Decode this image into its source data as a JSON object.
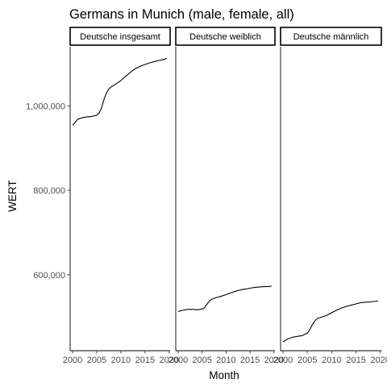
{
  "chart_data": {
    "type": "line",
    "title": "Germans in Munich (male, female, all)",
    "xlabel": "Month",
    "ylabel": "WERT",
    "xlim": [
      1999.5,
      2020.2
    ],
    "ylim": [
      420000,
      1140000
    ],
    "x_ticks": [
      2000,
      2005,
      2010,
      2015,
      2020
    ],
    "x_tick_labels": [
      "2000",
      "2005",
      "2010",
      "2015",
      "2020"
    ],
    "y_ticks": [
      600000,
      800000,
      1000000
    ],
    "y_tick_labels": [
      "600,000",
      "800,000",
      "1,000,000"
    ],
    "grid": false,
    "line_color": "#000000",
    "facets": [
      {
        "label": "Deutsche insgesamt",
        "x": [
          2000,
          2000.5,
          2001,
          2002,
          2003,
          2004,
          2005,
          2005.5,
          2006,
          2006.5,
          2007,
          2007.5,
          2008,
          2009,
          2010,
          2011,
          2012,
          2013,
          2014,
          2015,
          2016,
          2017,
          2018,
          2019,
          2019.5
        ],
        "y": [
          954000,
          960000,
          968000,
          972000,
          974000,
          975000,
          978000,
          983000,
          995000,
          1015000,
          1030000,
          1040000,
          1045000,
          1052000,
          1060000,
          1070000,
          1080000,
          1088000,
          1094000,
          1098000,
          1102000,
          1105000,
          1108000,
          1110000,
          1113000
        ]
      },
      {
        "label": "Deutsche weiblich",
        "x": [
          2000,
          2001,
          2002,
          2003,
          2004,
          2005,
          2005.5,
          2006,
          2006.5,
          2007,
          2008,
          2009,
          2010,
          2011,
          2012,
          2013,
          2014,
          2015,
          2016,
          2017,
          2018,
          2019,
          2019.5
        ],
        "y": [
          513000,
          516000,
          518000,
          518000,
          517000,
          519000,
          522000,
          530000,
          537000,
          542000,
          546000,
          549000,
          553000,
          557000,
          561000,
          564000,
          566000,
          568000,
          570000,
          571000,
          572000,
          572000,
          573000
        ]
      },
      {
        "label": "Deutsche männlich",
        "x": [
          2000,
          2001,
          2002,
          2003,
          2004,
          2005,
          2005.5,
          2006,
          2006.5,
          2007,
          2008,
          2009,
          2010,
          2011,
          2012,
          2013,
          2014,
          2015,
          2016,
          2017,
          2018,
          2019,
          2019.5
        ],
        "y": [
          441000,
          448000,
          452000,
          454000,
          456000,
          462000,
          470000,
          481000,
          490000,
          496000,
          500000,
          504000,
          510000,
          516000,
          521000,
          525000,
          528000,
          531000,
          534000,
          535000,
          536000,
          537000,
          538000
        ]
      }
    ]
  }
}
